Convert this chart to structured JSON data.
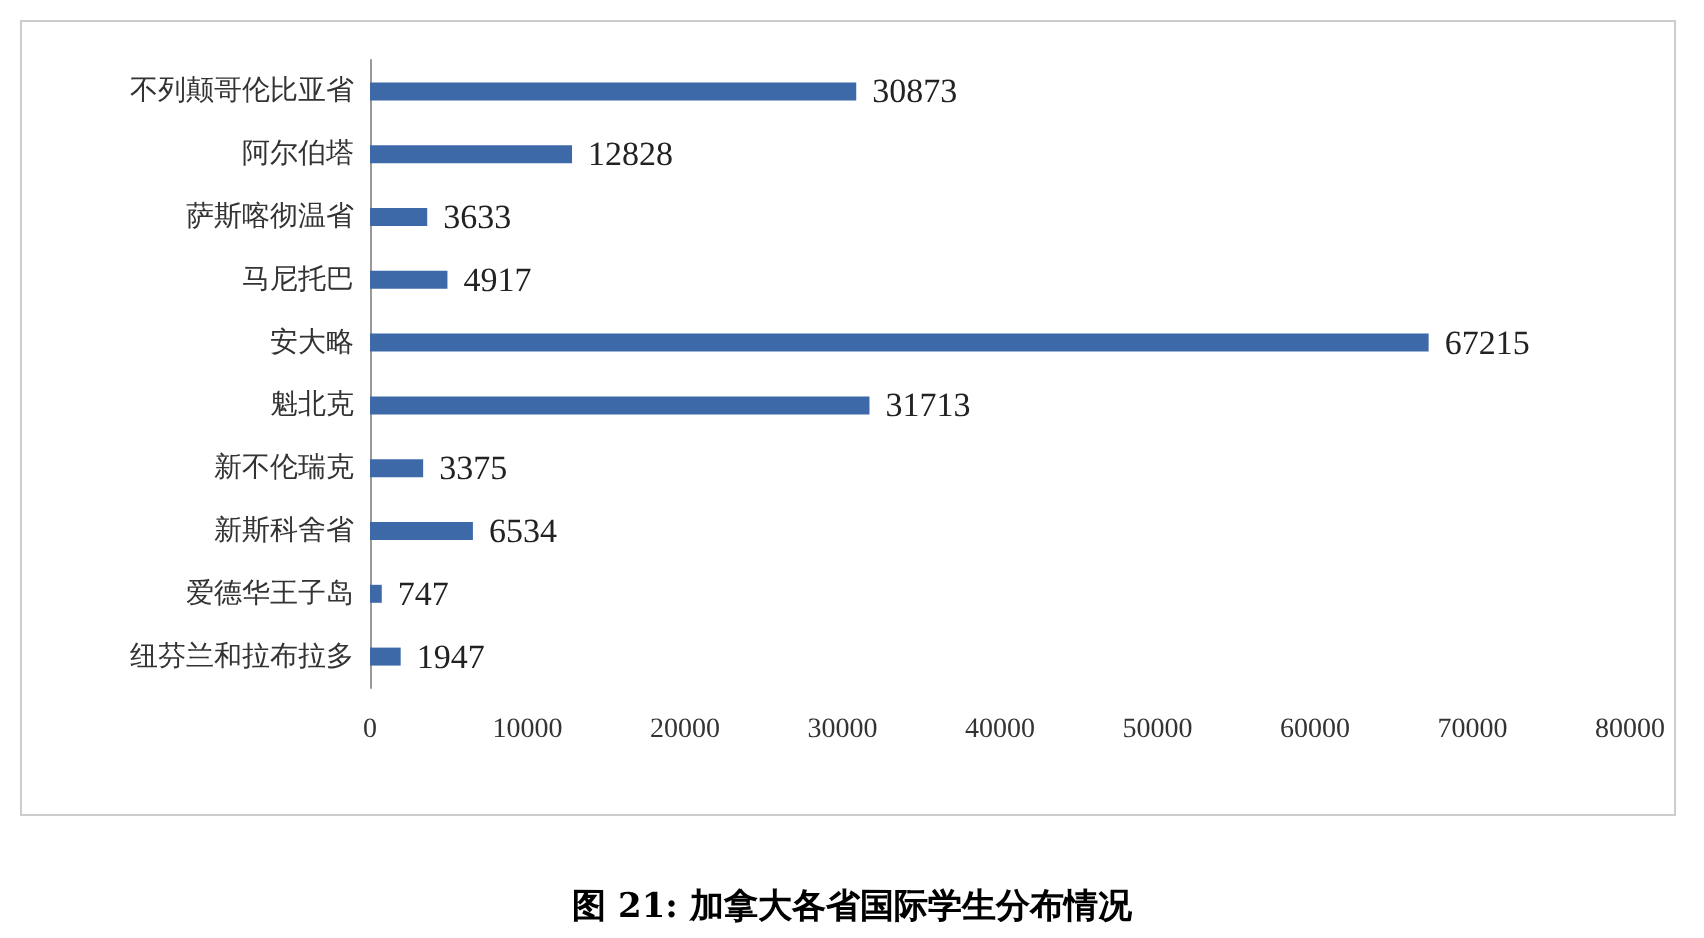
{
  "chart_data": {
    "type": "bar",
    "orientation": "horizontal",
    "title": "图 21: 加拿大各省国际学生分布情况",
    "categories": [
      "不列颠哥伦比亚省",
      "阿尔伯塔",
      "萨斯喀彻温省",
      "马尼托巴",
      "安大略",
      "魁北克",
      "新不伦瑞克",
      "新斯科舍省",
      "爱德华王子岛",
      "纽芬兰和拉布拉多"
    ],
    "values": [
      30873,
      12828,
      3633,
      4917,
      67215,
      31713,
      3375,
      6534,
      747,
      1947
    ],
    "color": "#3d69a8",
    "xlim": [
      0,
      80000
    ],
    "xticks": [
      0,
      10000,
      20000,
      30000,
      40000,
      50000,
      60000,
      70000,
      80000
    ],
    "data_labels": true
  }
}
